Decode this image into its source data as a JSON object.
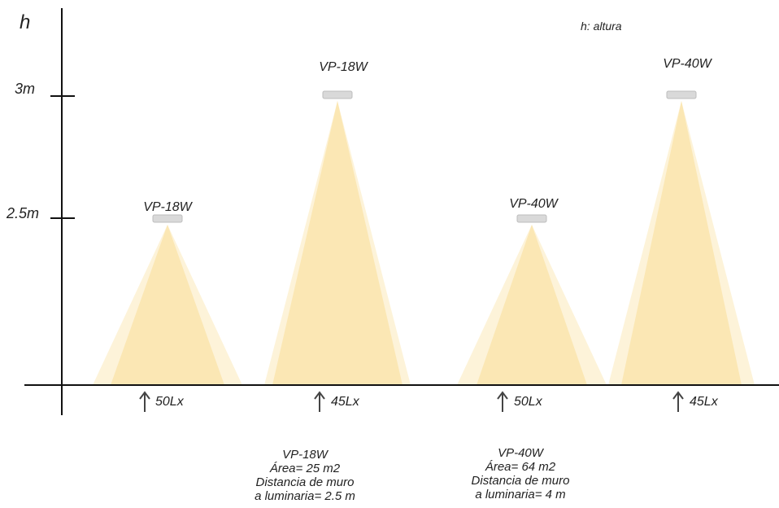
{
  "axis": {
    "label": "h",
    "ticks": [
      {
        "label": "3m",
        "value": 3
      },
      {
        "label": "2.5m",
        "value": 2.5
      }
    ]
  },
  "legend": "h: altura",
  "colors": {
    "beam_core": "#fbe7b4",
    "beam_halo": "#fdf3d9",
    "axis": "#111111",
    "fixture": "#d9d9d9"
  },
  "luminaires": [
    {
      "model": "VP-18W",
      "mount_height_m": 2.5,
      "lux": "50Lx"
    },
    {
      "model": "VP-18W",
      "mount_height_m": 3,
      "lux": "45Lx"
    },
    {
      "model": "VP-40W",
      "mount_height_m": 2.5,
      "lux": "50Lx"
    },
    {
      "model": "VP-40W",
      "mount_height_m": 3,
      "lux": "45Lx"
    }
  ],
  "notes": [
    {
      "model": "VP-18W",
      "area": "Área= 25 m2",
      "distance_line1": "Distancia de muro",
      "distance_line2": "a luminaria= 2.5 m"
    },
    {
      "model": "VP-40W",
      "area": "Área= 64 m2",
      "distance_line1": "Distancia de muro",
      "distance_line2": "a luminaria= 4 m"
    }
  ]
}
